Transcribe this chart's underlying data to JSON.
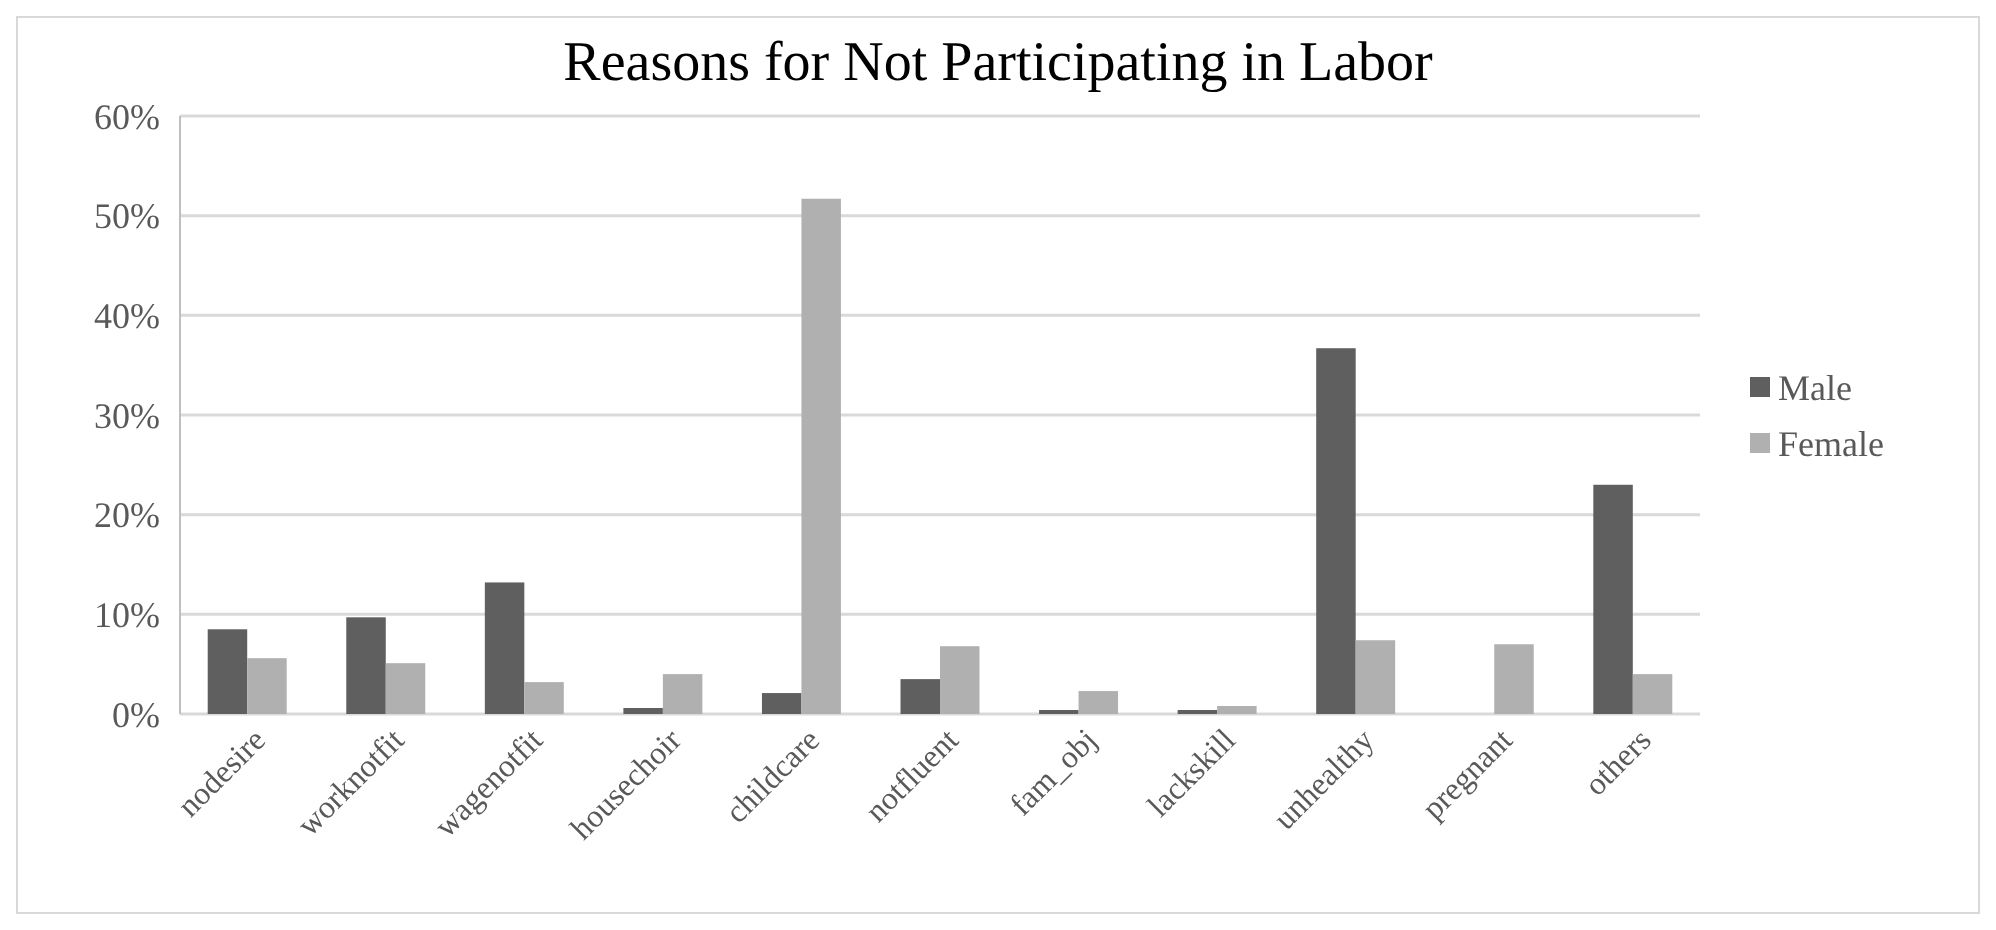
{
  "chart_data": {
    "type": "bar",
    "title": "Reasons for Not Participating in Labor",
    "categories": [
      "nodesire",
      "worknotfit",
      "wagenotfit",
      "housechoir",
      "childcare",
      "notfluent",
      "fam_obj",
      "lackskill",
      "unhealthy",
      "pregnant",
      "others"
    ],
    "series": [
      {
        "name": "Male",
        "color": "#5f5f5f",
        "values": [
          8.5,
          9.7,
          13.2,
          0.6,
          2.1,
          3.5,
          0.4,
          0.4,
          36.7,
          0,
          23.0
        ]
      },
      {
        "name": "Female",
        "color": "#b0b0b0",
        "values": [
          5.6,
          5.1,
          3.2,
          4.0,
          51.7,
          6.8,
          2.3,
          0.8,
          7.4,
          7.0,
          4.0
        ]
      }
    ],
    "ylim": [
      0,
      60
    ],
    "yticks": [
      {
        "value": 0,
        "label": "0%"
      },
      {
        "value": 10,
        "label": "10%"
      },
      {
        "value": 20,
        "label": "20%"
      },
      {
        "value": 30,
        "label": "30%"
      },
      {
        "value": 40,
        "label": "40%"
      },
      {
        "value": 50,
        "label": "50%"
      },
      {
        "value": 60,
        "label": "60%"
      }
    ],
    "grid": "y",
    "legend": "right"
  }
}
